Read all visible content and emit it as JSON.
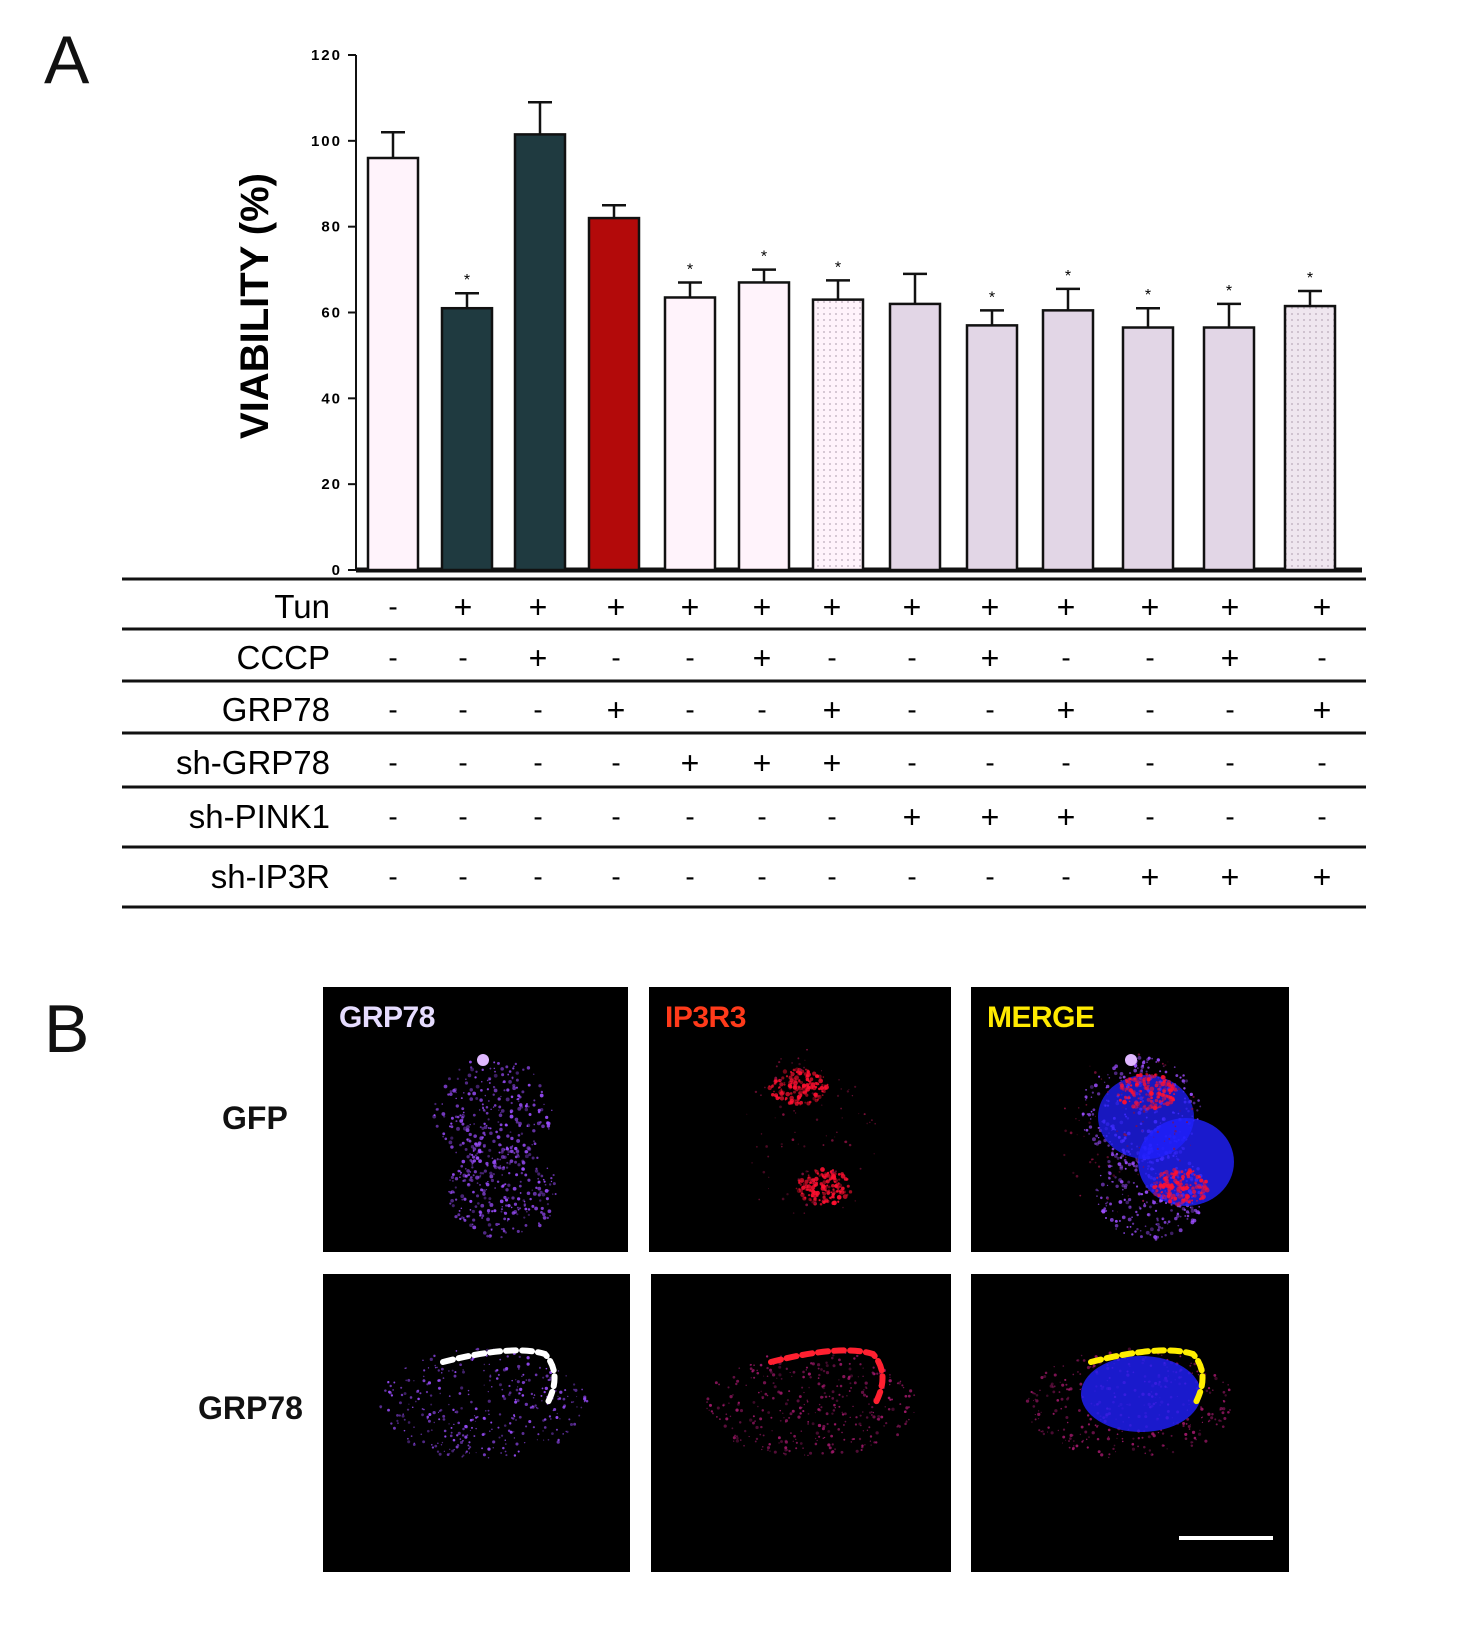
{
  "panel_a": {
    "letter": "A"
  },
  "panel_b": {
    "letter": "B"
  },
  "chart_data": {
    "type": "bar",
    "ylabel": "VIABILITY (%)",
    "ylim": [
      0,
      120
    ],
    "yticks": [
      "0",
      "20",
      "40",
      "60",
      "80",
      "100",
      "120"
    ],
    "bars": [
      {
        "value": 96,
        "err": 6,
        "sig": false,
        "fill": "#fff3fb",
        "pattern": "none"
      },
      {
        "value": 61,
        "err": 3.5,
        "sig": true,
        "fill": "#1f3a40",
        "pattern": "none"
      },
      {
        "value": 101.5,
        "err": 7.5,
        "sig": false,
        "fill": "#1f3a40",
        "pattern": "none"
      },
      {
        "value": 82,
        "err": 3,
        "sig": false,
        "fill": "#b30a0a",
        "pattern": "none"
      },
      {
        "value": 63.5,
        "err": 3.5,
        "sig": true,
        "fill": "#fff3fb",
        "pattern": "none"
      },
      {
        "value": 67,
        "err": 3,
        "sig": true,
        "fill": "#fff3fb",
        "pattern": "none"
      },
      {
        "value": 63,
        "err": 4.5,
        "sig": true,
        "fill": "#fff3fb",
        "pattern": "dots"
      },
      {
        "value": 62,
        "err": 7,
        "sig": false,
        "fill": "#e2d6e6",
        "pattern": "none"
      },
      {
        "value": 57,
        "err": 3.5,
        "sig": true,
        "fill": "#e2d6e6",
        "pattern": "none"
      },
      {
        "value": 60.5,
        "err": 5,
        "sig": true,
        "fill": "#e2d6e6",
        "pattern": "none"
      },
      {
        "value": 56.5,
        "err": 4.5,
        "sig": true,
        "fill": "#e2d6e6",
        "pattern": "none"
      },
      {
        "value": 56.5,
        "err": 5.5,
        "sig": true,
        "fill": "#e2d6e6",
        "pattern": "none"
      },
      {
        "value": 61.5,
        "err": 3.5,
        "sig": true,
        "fill": "#e2d6e6",
        "pattern": "dots"
      }
    ],
    "sig_marker": "*"
  },
  "conditions": [
    {
      "label": "Tun",
      "values": [
        "-",
        "+",
        "+",
        "+",
        "+",
        "+",
        "+",
        "+",
        "+",
        "+",
        "+",
        "+",
        "+"
      ]
    },
    {
      "label": "CCCP",
      "values": [
        "-",
        "-",
        "+",
        "-",
        "-",
        "+",
        "-",
        "-",
        "+",
        "-",
        "-",
        "+",
        "-"
      ]
    },
    {
      "label": "GRP78",
      "values": [
        "-",
        "-",
        "-",
        "+",
        "-",
        "-",
        "+",
        "-",
        "-",
        "+",
        "-",
        "-",
        "+"
      ]
    },
    {
      "label": "sh-GRP78",
      "values": [
        "-",
        "-",
        "-",
        "-",
        "+",
        "+",
        "+",
        "-",
        "-",
        "-",
        "-",
        "-",
        "-"
      ]
    },
    {
      "label": "sh-PINK1",
      "values": [
        "-",
        "-",
        "-",
        "-",
        "-",
        "-",
        "-",
        "+",
        "+",
        "+",
        "-",
        "-",
        "-"
      ]
    },
    {
      "label": "sh-IP3R",
      "values": [
        "-",
        "-",
        "-",
        "-",
        "-",
        "-",
        "-",
        "-",
        "-",
        "-",
        "+",
        "+",
        "+"
      ]
    }
  ],
  "micrographs": {
    "columns": [
      {
        "title": "GRP78",
        "color": "#e6dcff"
      },
      {
        "title": "IP3R3",
        "color": "#ff3a1a"
      },
      {
        "title": "MERGE",
        "color": "#ffea00"
      }
    ],
    "rows": [
      {
        "label": "GFP"
      },
      {
        "label": "GRP78"
      }
    ],
    "colors": {
      "grp78_stain": "#9b4dff",
      "ip3r_stain": "#ff1030",
      "nucleus": "#2020ff",
      "colocal": "#ffee00"
    }
  }
}
